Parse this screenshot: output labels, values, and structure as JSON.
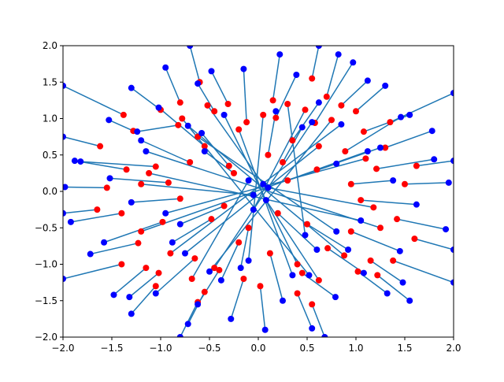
{
  "chart_data": {
    "type": "scatter",
    "title": "",
    "xlabel": "",
    "ylabel": "",
    "xlim": [
      -2.0,
      2.0
    ],
    "ylim": [
      -2.0,
      2.0
    ],
    "x_ticks": [
      -2.0,
      -1.5,
      -1.0,
      -0.5,
      0.0,
      0.5,
      1.0,
      1.5,
      2.0
    ],
    "y_ticks": [
      -2.0,
      -1.5,
      -1.0,
      -0.5,
      0.0,
      0.5,
      1.0,
      1.5,
      2.0
    ],
    "x_tick_labels": [
      "−2.0",
      "−1.5",
      "−1.0",
      "−0.5",
      "0.0",
      "0.5",
      "1.0",
      "1.5",
      "2.0"
    ],
    "y_tick_labels": [
      "−2.0",
      "−1.5",
      "−1.0",
      "−0.5",
      "0.0",
      "0.5",
      "1.0",
      "1.5",
      "2.0"
    ],
    "grid": false,
    "legend": "none",
    "colors": {
      "start_points": "#ff0000",
      "end_points": "#0000ff",
      "segments": "#1f77b4"
    },
    "segments": [
      {
        "start": [
          0.18,
          1.01
        ],
        "end": [
          0.39,
          1.6
        ]
      },
      {
        "start": [
          -0.82,
          0.91
        ],
        "end": [
          -1.24,
          0.82
        ]
      },
      {
        "start": [
          0.58,
          0.94
        ],
        "end": [
          0.97,
          1.77
        ]
      },
      {
        "start": [
          -0.31,
          1.2
        ],
        "end": [
          -0.48,
          1.65
        ]
      },
      {
        "start": [
          0.89,
          0.55
        ],
        "end": [
          1.46,
          1.02
        ]
      },
      {
        "start": [
          -1.05,
          0.34
        ],
        "end": [
          -1.82,
          0.41
        ]
      },
      {
        "start": [
          1.05,
          -0.12
        ],
        "end": [
          1.62,
          -0.18
        ]
      },
      {
        "start": [
          -0.98,
          -0.42
        ],
        "end": [
          -1.58,
          -0.7
        ]
      },
      {
        "start": [
          0.45,
          -1.12
        ],
        "end": [
          0.79,
          -1.45
        ]
      },
      {
        "start": [
          -0.4,
          -1.08
        ],
        "end": [
          -0.62,
          -1.55
        ]
      },
      {
        "start": [
          0.02,
          -1.3
        ],
        "end": [
          0.07,
          -1.9
        ]
      },
      {
        "start": [
          -1.23,
          -0.71
        ],
        "end": [
          -1.72,
          -0.86
        ]
      },
      {
        "start": [
          1.08,
          0.82
        ],
        "end": [
          1.55,
          1.05
        ]
      },
      {
        "start": [
          -0.12,
          0.95
        ],
        "end": [
          -0.15,
          1.68
        ]
      },
      {
        "start": [
          1.21,
          0.31
        ],
        "end": [
          1.8,
          0.44
        ]
      },
      {
        "start": [
          -1.28,
          0.83
        ],
        "end": [
          -1.53,
          0.98
        ]
      },
      {
        "start": [
          0.71,
          -0.78
        ],
        "end": [
          1.08,
          -1.12
        ]
      },
      {
        "start": [
          -0.65,
          -0.92
        ],
        "end": [
          -1.05,
          -1.4
        ]
      },
      {
        "start": [
          0.35,
          0.7
        ],
        "end": [
          0.62,
          1.22
        ]
      },
      {
        "start": [
          -0.55,
          0.62
        ],
        "end": [
          -1.02,
          1.15
        ]
      },
      {
        "start": [
          0.95,
          -0.55
        ],
        "end": [
          1.45,
          -0.82
        ]
      },
      {
        "start": [
          -0.92,
          0.12
        ],
        "end": [
          -1.52,
          0.18
        ]
      },
      {
        "start": [
          1.15,
          -0.95
        ],
        "end": [
          1.48,
          -1.25
        ]
      },
      {
        "start": [
          -1.15,
          -1.05
        ],
        "end": [
          -1.48,
          -1.42
        ]
      },
      {
        "start": [
          0.12,
          -0.85
        ],
        "end": [
          0.25,
          -1.5
        ]
      },
      {
        "start": [
          -0.2,
          -0.7
        ],
        "end": [
          -0.38,
          -1.22
        ]
      },
      {
        "start": [
          1.3,
          0.6
        ],
        "end": [
          1.78,
          0.83
        ]
      },
      {
        "start": [
          -1.35,
          0.3
        ],
        "end": [
          -1.88,
          0.42
        ]
      },
      {
        "start": [
          0.6,
          0.3
        ],
        "end": [
          1.12,
          0.55
        ]
      },
      {
        "start": [
          -0.7,
          0.4
        ],
        "end": [
          -1.2,
          0.7
        ]
      },
      {
        "start": [
          0.85,
          1.18
        ],
        "end": [
          1.12,
          1.52
        ]
      },
      {
        "start": [
          -0.45,
          1.1
        ],
        "end": [
          -0.62,
          1.48
        ]
      },
      {
        "start": [
          1.42,
          -0.38
        ],
        "end": [
          1.92,
          -0.52
        ]
      },
      {
        "start": [
          -1.4,
          -0.3
        ],
        "end": [
          -1.92,
          -0.42
        ]
      },
      {
        "start": [
          0.4,
          -1.4
        ],
        "end": [
          0.55,
          -1.88
        ]
      },
      {
        "start": [
          -0.55,
          -1.38
        ],
        "end": [
          -0.72,
          -1.82
        ]
      },
      {
        "start": [
          0.25,
          0.4
        ],
        "end": [
          0.45,
          0.88
        ]
      },
      {
        "start": [
          -0.3,
          0.35
        ],
        "end": [
          -0.58,
          0.8
        ]
      },
      {
        "start": [
          0.5,
          -0.45
        ],
        "end": [
          0.92,
          -0.8
        ]
      },
      {
        "start": [
          -0.48,
          -0.38
        ],
        "end": [
          -0.88,
          -0.7
        ]
      },
      {
        "start": [
          1.22,
          -1.15
        ],
        "end": [
          1.55,
          -1.5
        ]
      },
      {
        "start": [
          -1.05,
          -1.3
        ],
        "end": [
          -1.3,
          -1.68
        ]
      },
      {
        "start": [
          0.7,
          1.3
        ],
        "end": [
          0.82,
          1.88
        ]
      },
      {
        "start": [
          -0.8,
          1.22
        ],
        "end": [
          -0.95,
          1.7
        ]
      },
      {
        "start": [
          1.5,
          0.1
        ],
        "end": [
          1.95,
          0.12
        ]
      },
      {
        "start": [
          -1.55,
          0.05
        ],
        "end": [
          -1.98,
          0.06
        ]
      },
      {
        "start": [
          0.95,
          0.1
        ],
        "end": [
          1.38,
          0.15
        ]
      },
      {
        "start": [
          -0.8,
          -0.1
        ],
        "end": [
          -1.3,
          -0.15
        ]
      },
      {
        "start": [
          0.15,
          1.25
        ],
        "end": [
          0.22,
          1.88
        ]
      },
      {
        "start": [
          -0.15,
          -1.2
        ],
        "end": [
          -0.28,
          -1.75
        ]
      },
      {
        "start": [
          0.3,
          1.2
        ],
        "end": [
          0.48,
          -0.6
        ]
      },
      {
        "start": [
          -0.2,
          0.85
        ],
        "end": [
          0.35,
          -1.15
        ]
      },
      {
        "start": [
          0.62,
          0.62
        ],
        "end": [
          -0.75,
          -0.85
        ]
      },
      {
        "start": [
          -0.62,
          0.75
        ],
        "end": [
          0.8,
          -0.55
        ]
      },
      {
        "start": [
          1.1,
          0.45
        ],
        "end": [
          -0.95,
          -0.3
        ]
      },
      {
        "start": [
          -1.12,
          0.25
        ],
        "end": [
          1.05,
          -0.4
        ]
      },
      {
        "start": [
          0.4,
          -1.0
        ],
        "end": [
          -0.35,
          1.05
        ]
      },
      {
        "start": [
          -0.45,
          -1.05
        ],
        "end": [
          0.55,
          0.95
        ]
      },
      {
        "start": [
          1.25,
          -0.5
        ],
        "end": [
          -1.15,
          0.55
        ]
      },
      {
        "start": [
          -1.2,
          -0.55
        ],
        "end": [
          1.25,
          0.6
        ]
      },
      {
        "start": [
          0.05,
          1.05
        ],
        "end": [
          -0.1,
          -0.95
        ]
      },
      {
        "start": [
          0.88,
          -0.88
        ],
        "end": [
          -0.72,
          0.9
        ]
      },
      {
        "start": [
          -0.9,
          -0.85
        ],
        "end": [
          0.85,
          0.92
        ]
      },
      {
        "start": [
          0.75,
          0.98
        ],
        "end": [
          -0.5,
          -1.1
        ]
      },
      {
        "start": [
          -0.78,
          1.0
        ],
        "end": [
          0.52,
          -1.15
        ]
      },
      {
        "start": [
          1.35,
          0.95
        ],
        "end": [
          2.0,
          1.35
        ]
      },
      {
        "start": [
          -1.38,
          1.05
        ],
        "end": [
          -2.0,
          1.45
        ]
      },
      {
        "start": [
          1.38,
          -0.95
        ],
        "end": [
          2.0,
          -1.25
        ]
      },
      {
        "start": [
          -1.4,
          -1.0
        ],
        "end": [
          -2.0,
          -1.2
        ]
      },
      {
        "start": [
          0.55,
          1.55
        ],
        "end": [
          0.62,
          2.0
        ]
      },
      {
        "start": [
          -0.6,
          1.5
        ],
        "end": [
          -0.7,
          2.0
        ]
      },
      {
        "start": [
          0.55,
          -1.55
        ],
        "end": [
          0.68,
          -2.0
        ]
      },
      {
        "start": [
          -0.62,
          -1.52
        ],
        "end": [
          -0.8,
          -2.0
        ]
      },
      {
        "start": [
          1.62,
          0.35
        ],
        "end": [
          2.0,
          0.42
        ]
      },
      {
        "start": [
          -1.65,
          -0.25
        ],
        "end": [
          -2.0,
          -0.3
        ]
      },
      {
        "start": [
          1.6,
          -0.65
        ],
        "end": [
          2.0,
          -0.8
        ]
      },
      {
        "start": [
          -1.62,
          0.62
        ],
        "end": [
          -2.0,
          0.75
        ]
      },
      {
        "start": [
          0.2,
          -0.3
        ],
        "end": [
          0.6,
          -0.8
        ]
      },
      {
        "start": [
          -0.25,
          0.25
        ],
        "end": [
          -0.55,
          0.55
        ]
      },
      {
        "start": [
          0.3,
          0.15
        ],
        "end": [
          0.8,
          0.38
        ]
      },
      {
        "start": [
          -0.35,
          -0.2
        ],
        "end": [
          -0.8,
          -0.45
        ]
      },
      {
        "start": [
          0.1,
          0.5
        ],
        "end": [
          0.18,
          1.1
        ]
      },
      {
        "start": [
          -0.1,
          -0.5
        ],
        "end": [
          -0.18,
          -1.05
        ]
      },
      {
        "start": [
          1.0,
          1.1
        ],
        "end": [
          1.3,
          1.45
        ]
      },
      {
        "start": [
          -1.0,
          1.12
        ],
        "end": [
          -1.3,
          1.42
        ]
      },
      {
        "start": [
          1.02,
          -1.1
        ],
        "end": [
          1.32,
          -1.4
        ]
      },
      {
        "start": [
          -1.02,
          -1.12
        ],
        "end": [
          -1.32,
          -1.45
        ]
      },
      {
        "start": [
          0.48,
          1.12
        ],
        "end": [
          -0.05,
          -0.25
        ]
      },
      {
        "start": [
          -0.52,
          1.18
        ],
        "end": [
          0.05,
          0.1
        ]
      },
      {
        "start": [
          1.18,
          -0.22
        ],
        "end": [
          0.1,
          0.05
        ]
      },
      {
        "start": [
          -1.2,
          0.1
        ],
        "end": [
          -0.05,
          -0.05
        ]
      },
      {
        "start": [
          0.62,
          -1.22
        ],
        "end": [
          0.08,
          -0.12
        ]
      },
      {
        "start": [
          -0.68,
          -1.2
        ],
        "end": [
          -0.1,
          0.15
        ]
      }
    ]
  }
}
